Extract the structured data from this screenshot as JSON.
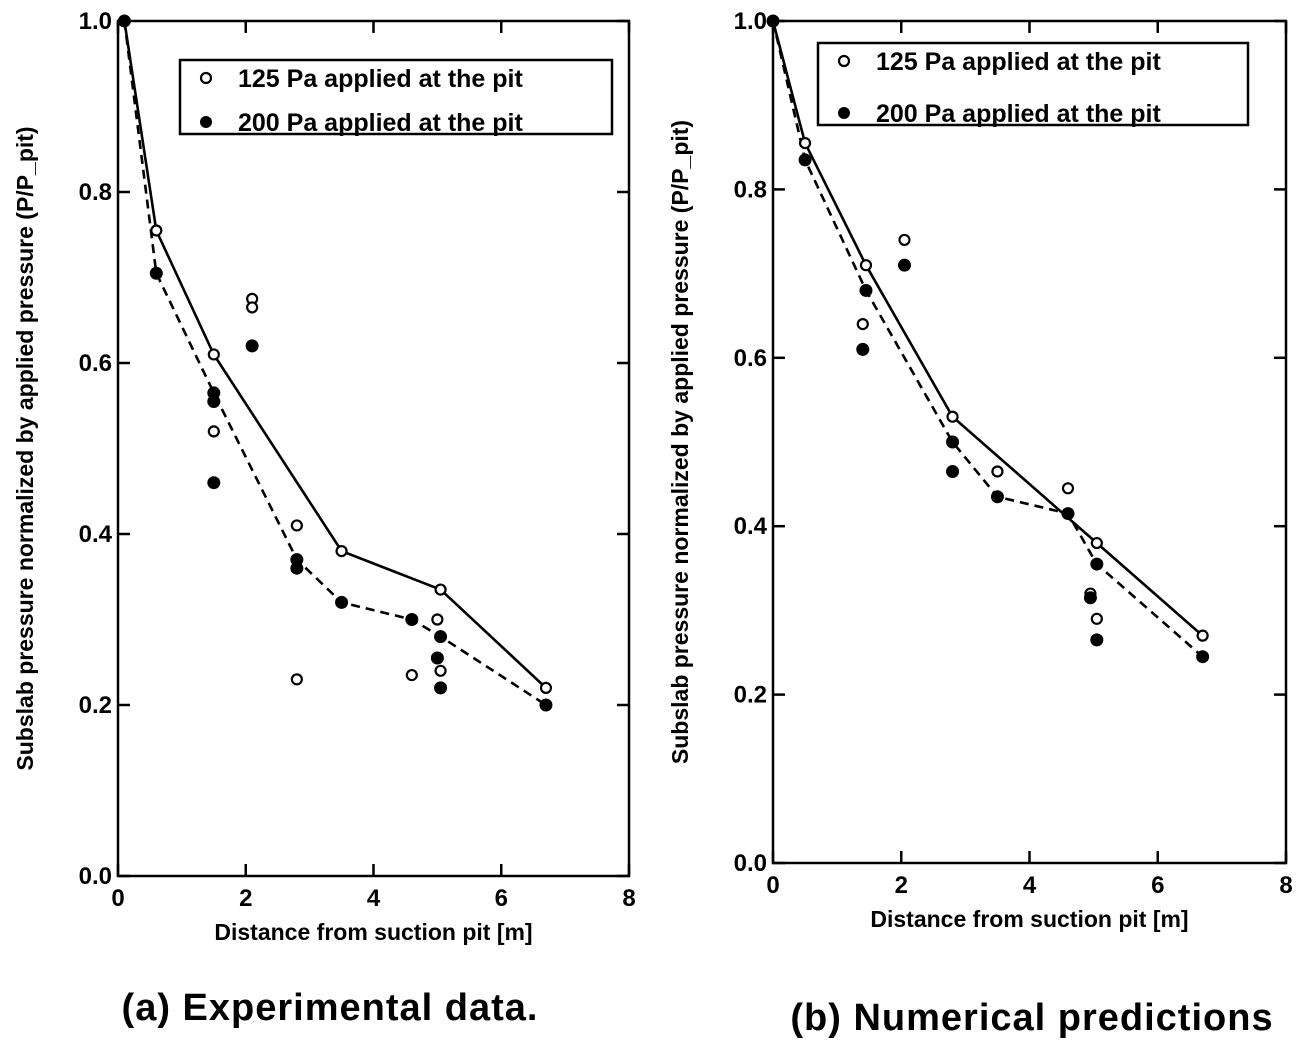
{
  "chart_data": [
    {
      "type": "line",
      "caption": "(a) Experimental data.",
      "xlabel": "Distance from suction pit [m]",
      "ylabel": "Subslab pressure normalized by applied pressure (P/P_pit)",
      "xlim": [
        0,
        8
      ],
      "ylim": [
        0,
        1.0
      ],
      "x_ticks": [
        "0",
        "2",
        "4",
        "6",
        "8"
      ],
      "y_ticks": [
        "0.0",
        "0.2",
        "0.4",
        "0.6",
        "0.8",
        "1.0"
      ],
      "legend": {
        "position": "top-right",
        "entries": [
          "125 Pa applied at the pit",
          "200 Pa applied at the pit"
        ]
      },
      "series": [
        {
          "name": "125 Pa applied at the pit",
          "marker": "open-circle",
          "line": "solid",
          "line_points": [
            [
              0.1,
              1.0
            ],
            [
              0.6,
              0.755
            ],
            [
              1.5,
              0.61
            ],
            [
              3.5,
              0.38
            ],
            [
              5.05,
              0.335
            ],
            [
              6.7,
              0.22
            ]
          ],
          "points": [
            [
              0.1,
              1.0
            ],
            [
              0.6,
              0.755
            ],
            [
              1.5,
              0.61
            ],
            [
              1.5,
              0.52
            ],
            [
              2.1,
              0.675
            ],
            [
              2.1,
              0.665
            ],
            [
              2.8,
              0.41
            ],
            [
              2.8,
              0.23
            ],
            [
              3.5,
              0.38
            ],
            [
              4.6,
              0.235
            ],
            [
              5.0,
              0.3
            ],
            [
              5.05,
              0.335
            ],
            [
              5.05,
              0.24
            ],
            [
              6.7,
              0.22
            ]
          ]
        },
        {
          "name": "200 Pa applied at the pit",
          "marker": "filled-circle",
          "line": "dashed",
          "line_points": [
            [
              0.1,
              1.0
            ],
            [
              0.6,
              0.705
            ],
            [
              1.5,
              0.565
            ],
            [
              2.8,
              0.37
            ],
            [
              3.5,
              0.32
            ],
            [
              4.6,
              0.3
            ],
            [
              5.05,
              0.28
            ],
            [
              6.7,
              0.2
            ]
          ],
          "points": [
            [
              0.1,
              1.0
            ],
            [
              0.6,
              0.705
            ],
            [
              1.5,
              0.565
            ],
            [
              1.5,
              0.555
            ],
            [
              1.5,
              0.46
            ],
            [
              2.1,
              0.62
            ],
            [
              2.8,
              0.37
            ],
            [
              2.8,
              0.36
            ],
            [
              3.5,
              0.32
            ],
            [
              4.6,
              0.3
            ],
            [
              5.0,
              0.255
            ],
            [
              5.05,
              0.28
            ],
            [
              5.05,
              0.22
            ],
            [
              6.7,
              0.2
            ]
          ]
        }
      ]
    },
    {
      "type": "line",
      "caption": "(b) Numerical predictions",
      "xlabel": "Distance from suction pit [m]",
      "ylabel": "Subslab pressure normalized by applied pressure (P/P_pit)",
      "xlim": [
        0,
        8
      ],
      "ylim": [
        0,
        1.0
      ],
      "x_ticks": [
        "0",
        "2",
        "4",
        "6",
        "8"
      ],
      "y_ticks": [
        "0.0",
        "0.2",
        "0.4",
        "0.6",
        "0.8",
        "1.0"
      ],
      "legend": {
        "position": "top-right",
        "entries": [
          "125 Pa applied at the pit",
          "200 Pa applied at the pit"
        ]
      },
      "series": [
        {
          "name": "125 Pa applied at the pit",
          "marker": "open-circle",
          "line": "solid",
          "line_points": [
            [
              0.0,
              1.0
            ],
            [
              0.5,
              0.855
            ],
            [
              1.45,
              0.71
            ],
            [
              2.8,
              0.53
            ],
            [
              5.05,
              0.38
            ],
            [
              6.7,
              0.27
            ]
          ],
          "points": [
            [
              0.0,
              1.0
            ],
            [
              0.5,
              0.855
            ],
            [
              1.45,
              0.71
            ],
            [
              1.4,
              0.64
            ],
            [
              2.05,
              0.74
            ],
            [
              2.8,
              0.53
            ],
            [
              3.5,
              0.465
            ],
            [
              4.6,
              0.445
            ],
            [
              4.95,
              0.32
            ],
            [
              5.05,
              0.38
            ],
            [
              5.05,
              0.29
            ],
            [
              6.7,
              0.27
            ]
          ]
        },
        {
          "name": "200 Pa applied at the pit",
          "marker": "filled-circle",
          "line": "dashed",
          "line_points": [
            [
              0.0,
              1.0
            ],
            [
              0.5,
              0.835
            ],
            [
              1.45,
              0.68
            ],
            [
              2.8,
              0.5
            ],
            [
              3.5,
              0.435
            ],
            [
              4.6,
              0.415
            ],
            [
              5.05,
              0.355
            ],
            [
              6.7,
              0.245
            ]
          ],
          "points": [
            [
              0.0,
              1.0
            ],
            [
              0.5,
              0.835
            ],
            [
              1.45,
              0.68
            ],
            [
              1.4,
              0.61
            ],
            [
              2.05,
              0.71
            ],
            [
              2.8,
              0.5
            ],
            [
              2.8,
              0.465
            ],
            [
              3.5,
              0.435
            ],
            [
              4.6,
              0.415
            ],
            [
              4.95,
              0.315
            ],
            [
              5.05,
              0.355
            ],
            [
              5.05,
              0.265
            ],
            [
              6.7,
              0.245
            ]
          ]
        }
      ]
    }
  ]
}
